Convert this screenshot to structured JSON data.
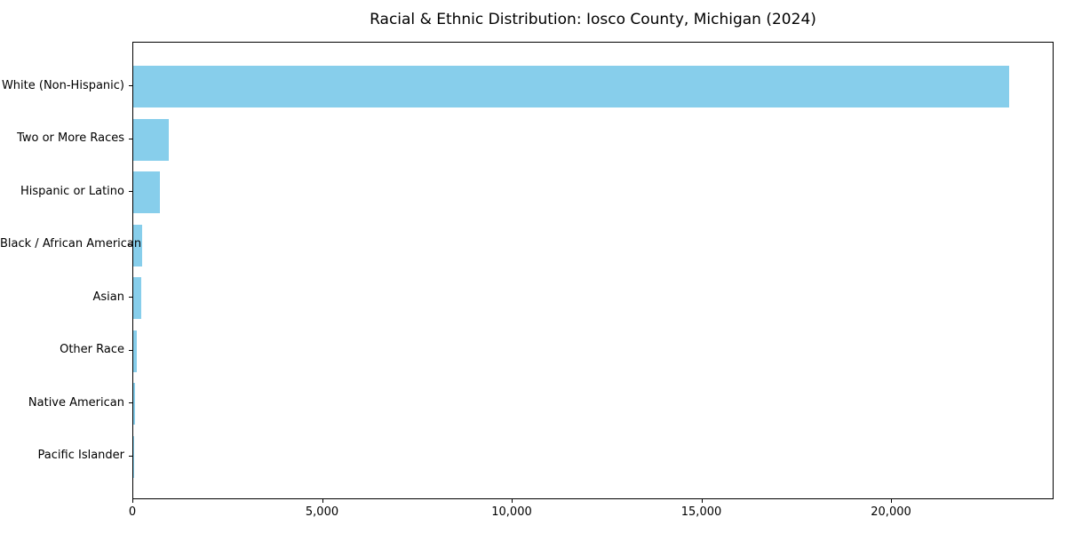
{
  "chart_data": {
    "type": "bar",
    "orientation": "horizontal",
    "title": "Racial & Ethnic Distribution: Iosco County, Michigan (2024)",
    "categories": [
      "White (Non-Hispanic)",
      "Two or More Races",
      "Hispanic or Latino",
      "Black / African American",
      "Asian",
      "Other Race",
      "Native American",
      "Pacific Islander"
    ],
    "values": [
      23100,
      940,
      710,
      240,
      215,
      100,
      40,
      10
    ],
    "xlabel": "",
    "ylabel": "",
    "xlim": [
      0,
      24285
    ],
    "x_ticks": [
      {
        "value": 0,
        "label": "0"
      },
      {
        "value": 5000,
        "label": "5,000"
      },
      {
        "value": 10000,
        "label": "10,000"
      },
      {
        "value": 15000,
        "label": "15,000"
      },
      {
        "value": 20000,
        "label": "20,000"
      }
    ],
    "grid": false,
    "legend": null,
    "colors": {
      "bar": "#87CEEB",
      "axis": "#000000",
      "text": "#000000",
      "background": "#FFFFFF"
    }
  }
}
